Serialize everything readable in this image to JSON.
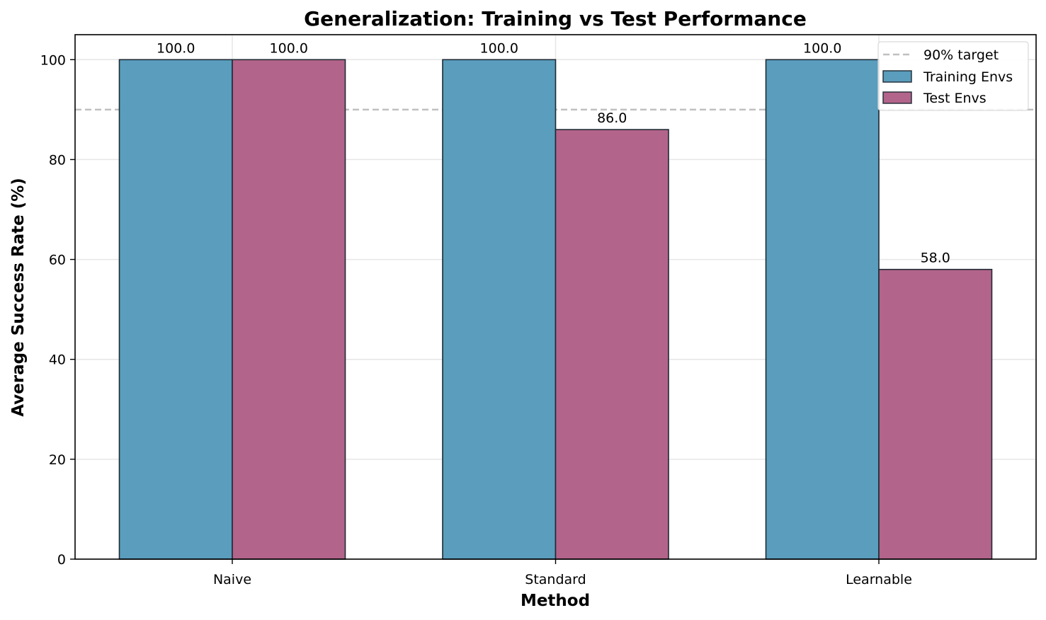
{
  "chart_data": {
    "type": "bar",
    "title": "Generalization: Training vs Test Performance",
    "xlabel": "Method",
    "ylabel": "Average Success Rate (%)",
    "categories": [
      "Naive",
      "Standard",
      "Learnable"
    ],
    "series": [
      {
        "name": "Training Envs",
        "values": [
          100.0,
          100.0,
          100.0
        ],
        "color": "#5a9dbd",
        "labels": [
          "100.0",
          "100.0",
          "100.0"
        ]
      },
      {
        "name": "Test Envs",
        "values": [
          100.0,
          86.0,
          58.0
        ],
        "color": "#b3648b",
        "labels": [
          "100.0",
          "86.0",
          "58.0"
        ]
      }
    ],
    "ylim": [
      0,
      105
    ],
    "yticks": [
      0,
      20,
      40,
      60,
      80,
      100
    ],
    "reference_line": {
      "label": "90% target",
      "value": 90,
      "color": "#c0c0c0",
      "style": "dashed"
    },
    "grid": true,
    "legend_position": "top-right"
  }
}
